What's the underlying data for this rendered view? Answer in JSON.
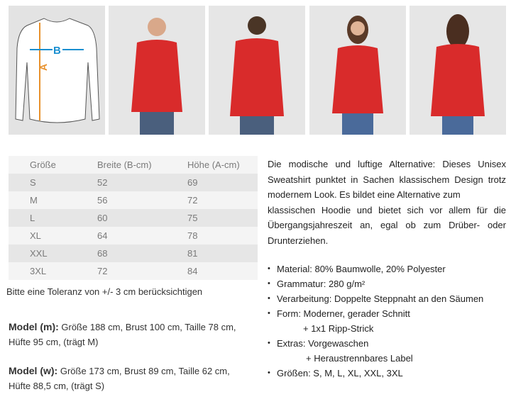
{
  "size_diagram": {
    "label_a": "A",
    "label_b": "B",
    "color_a": "#e8912c",
    "color_b": "#1a8fd0"
  },
  "photos": [
    {
      "name": "male-model-front"
    },
    {
      "name": "male-model-back"
    },
    {
      "name": "female-model-front"
    },
    {
      "name": "female-model-back"
    }
  ],
  "product_color": "#d92b2b",
  "size_table": {
    "headers": [
      "Größe",
      "Breite (B-cm)",
      "Höhe (A-cm)"
    ],
    "rows": [
      [
        "S",
        "52",
        "69"
      ],
      [
        "M",
        "56",
        "72"
      ],
      [
        "L",
        "60",
        "75"
      ],
      [
        "XL",
        "64",
        "78"
      ],
      [
        "XXL",
        "68",
        "81"
      ],
      [
        "3XL",
        "72",
        "84"
      ]
    ]
  },
  "tolerance_note": "Bitte eine Toleranz von +/- 3 cm berücksichtigen",
  "model_m": {
    "label": "Model (m):",
    "line1": "Größe 188 cm, Brust 100 cm, Taille 78 cm,",
    "line2": "Hüfte 95 cm, (trägt M)"
  },
  "model_w": {
    "label": "Model (w):",
    "line1": "Größe 173 cm, Brust 89 cm, Taille 62 cm,",
    "line2": "Hüfte 88,5 cm, (trägt S)"
  },
  "description": [
    "Die modische und luftige Alternative: Dieses Unisex",
    "Sweatshirt punktet in Sachen klassischem Design trotz",
    "modernem Look. Es bildet eine Alternative zum",
    "klassischen Hoodie und bietet sich vor allem für die",
    "Übergangsjahreszeit an, egal ob zum Drüber- oder",
    "Drunterziehen."
  ],
  "features": {
    "material": "Material: 80% Baumwolle, 20% Polyester",
    "grammatur": "Grammatur: 280 g/m²",
    "verarbeitung": "Verarbeitung: Doppelte Steppnaht an den Säumen",
    "form": "Form: Moderner, gerader Schnitt",
    "form_extra": "+ 1x1 Ripp-Strick",
    "extras": "Extras: Vorgewaschen",
    "extras_extra": "+ Heraustrennbares Label",
    "groessen": "Größen:  S, M, L, XL, XXL, 3XL"
  }
}
